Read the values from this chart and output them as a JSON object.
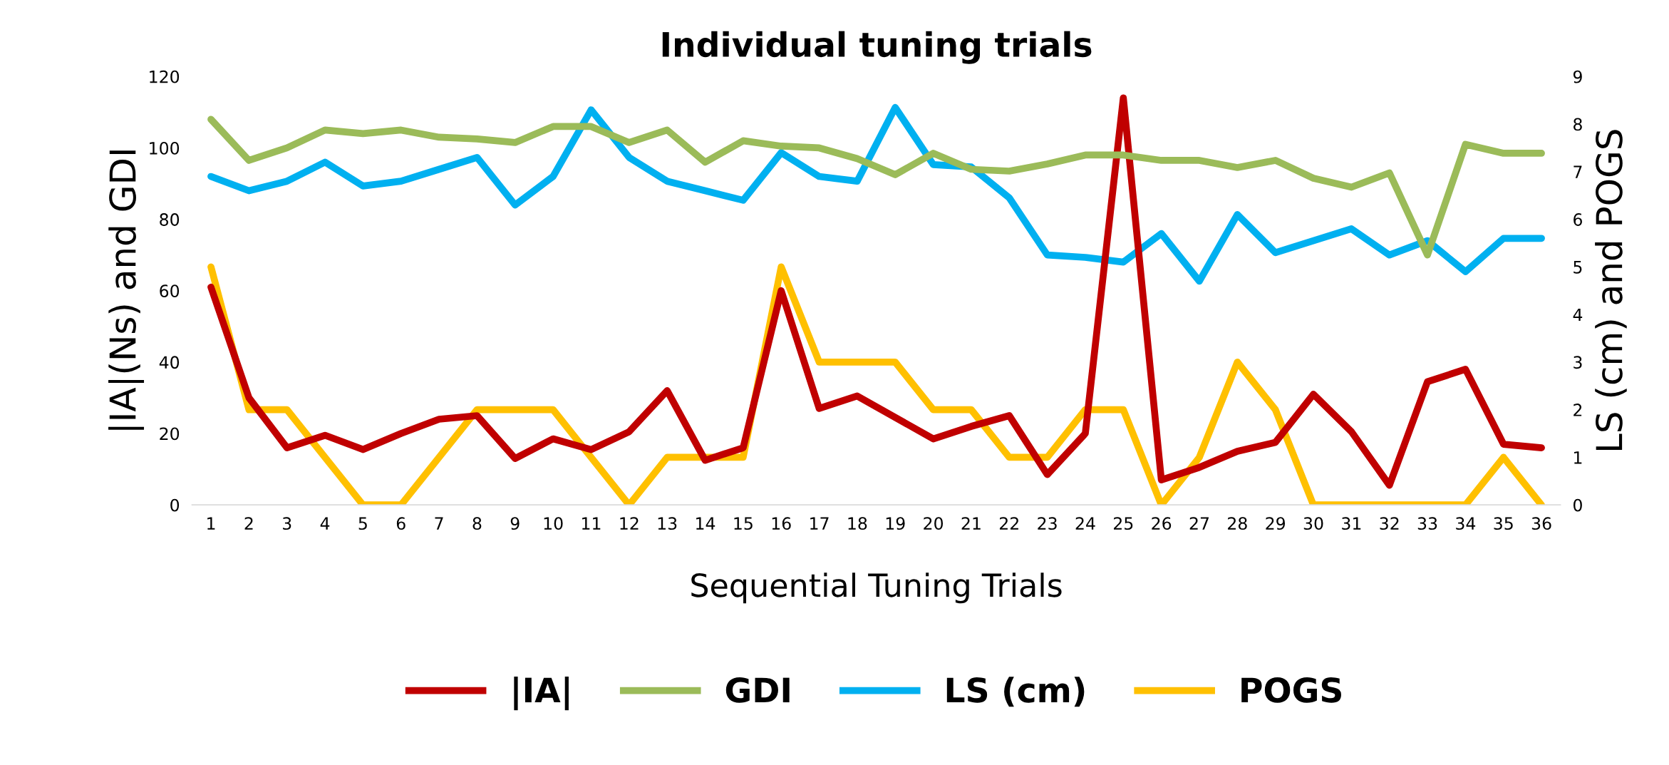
{
  "chart_data": {
    "type": "line",
    "title": "Individual tuning trials",
    "xlabel": "Sequential Tuning Trials",
    "ylabel": "|IA|(Ns) and GDI",
    "y2label": "LS (cm) and POGS",
    "categories": [
      "1",
      "2",
      "3",
      "4",
      "5",
      "6",
      "7",
      "8",
      "9",
      "10",
      "11",
      "12",
      "13",
      "14",
      "15",
      "16",
      "17",
      "18",
      "19",
      "20",
      "21",
      "22",
      "23",
      "24",
      "25",
      "26",
      "27",
      "28",
      "29",
      "30",
      "31",
      "32",
      "33",
      "34",
      "35",
      "36"
    ],
    "series": [
      {
        "name": "|IA|",
        "color": "#c00000",
        "values": [
          61,
          30,
          16,
          19.5,
          15.5,
          20,
          24,
          25,
          13,
          18.5,
          15.5,
          20.5,
          32,
          12.5,
          16,
          60,
          27,
          30.5,
          24.5,
          18.5,
          22,
          25,
          8.5,
          20,
          114,
          7,
          10.5,
          15,
          17.5,
          31,
          20.5,
          5.5,
          34.5,
          38,
          17,
          16
        ]
      },
      {
        "name": "GDI",
        "color": "#9bbb59",
        "values": [
          108,
          96.5,
          100,
          105,
          104,
          105,
          103,
          102.5,
          101.5,
          106,
          106,
          101.5,
          105,
          96,
          102,
          100.5,
          100,
          97,
          92.5,
          98.5,
          94,
          93.5,
          95.5,
          98,
          98,
          96.5,
          96.5,
          94.5,
          96.5,
          91.5,
          89,
          93,
          70,
          101,
          98.5,
          98.5
        ]
      },
      {
        "name": "LS (cm)",
        "color": "#00b0f0",
        "axis": "y2",
        "values": [
          6.9,
          6.6,
          6.8,
          7.2,
          6.7,
          6.8,
          7.05,
          7.3,
          6.3,
          6.9,
          8.3,
          7.3,
          6.8,
          6.6,
          6.4,
          7.4,
          6.9,
          6.8,
          8.35,
          7.15,
          7.1,
          6.45,
          5.25,
          5.2,
          5.1,
          5.7,
          4.7,
          6.1,
          5.3,
          5.55,
          5.8,
          5.25,
          5.55,
          4.9,
          5.6,
          5.6
        ]
      },
      {
        "name": "POGS",
        "color": "#ffc000",
        "axis": "y2",
        "values": [
          5,
          2,
          2,
          1,
          0,
          0,
          1,
          2,
          2,
          2,
          1,
          0,
          1,
          1,
          1,
          5,
          3,
          3,
          3,
          2,
          2,
          1,
          1,
          2,
          2,
          0,
          1,
          3,
          2,
          0,
          0,
          0,
          0,
          0,
          1,
          0
        ]
      }
    ],
    "ylim": [
      0,
      120
    ],
    "yticks": [
      0,
      20,
      40,
      60,
      80,
      100,
      120
    ],
    "y2lim": [
      0,
      9
    ],
    "y2ticks": [
      0,
      1,
      2,
      3,
      4,
      5,
      6,
      7,
      8,
      9
    ],
    "grid": false,
    "legend": "bottom",
    "marker": "none",
    "line_style": "solid"
  }
}
